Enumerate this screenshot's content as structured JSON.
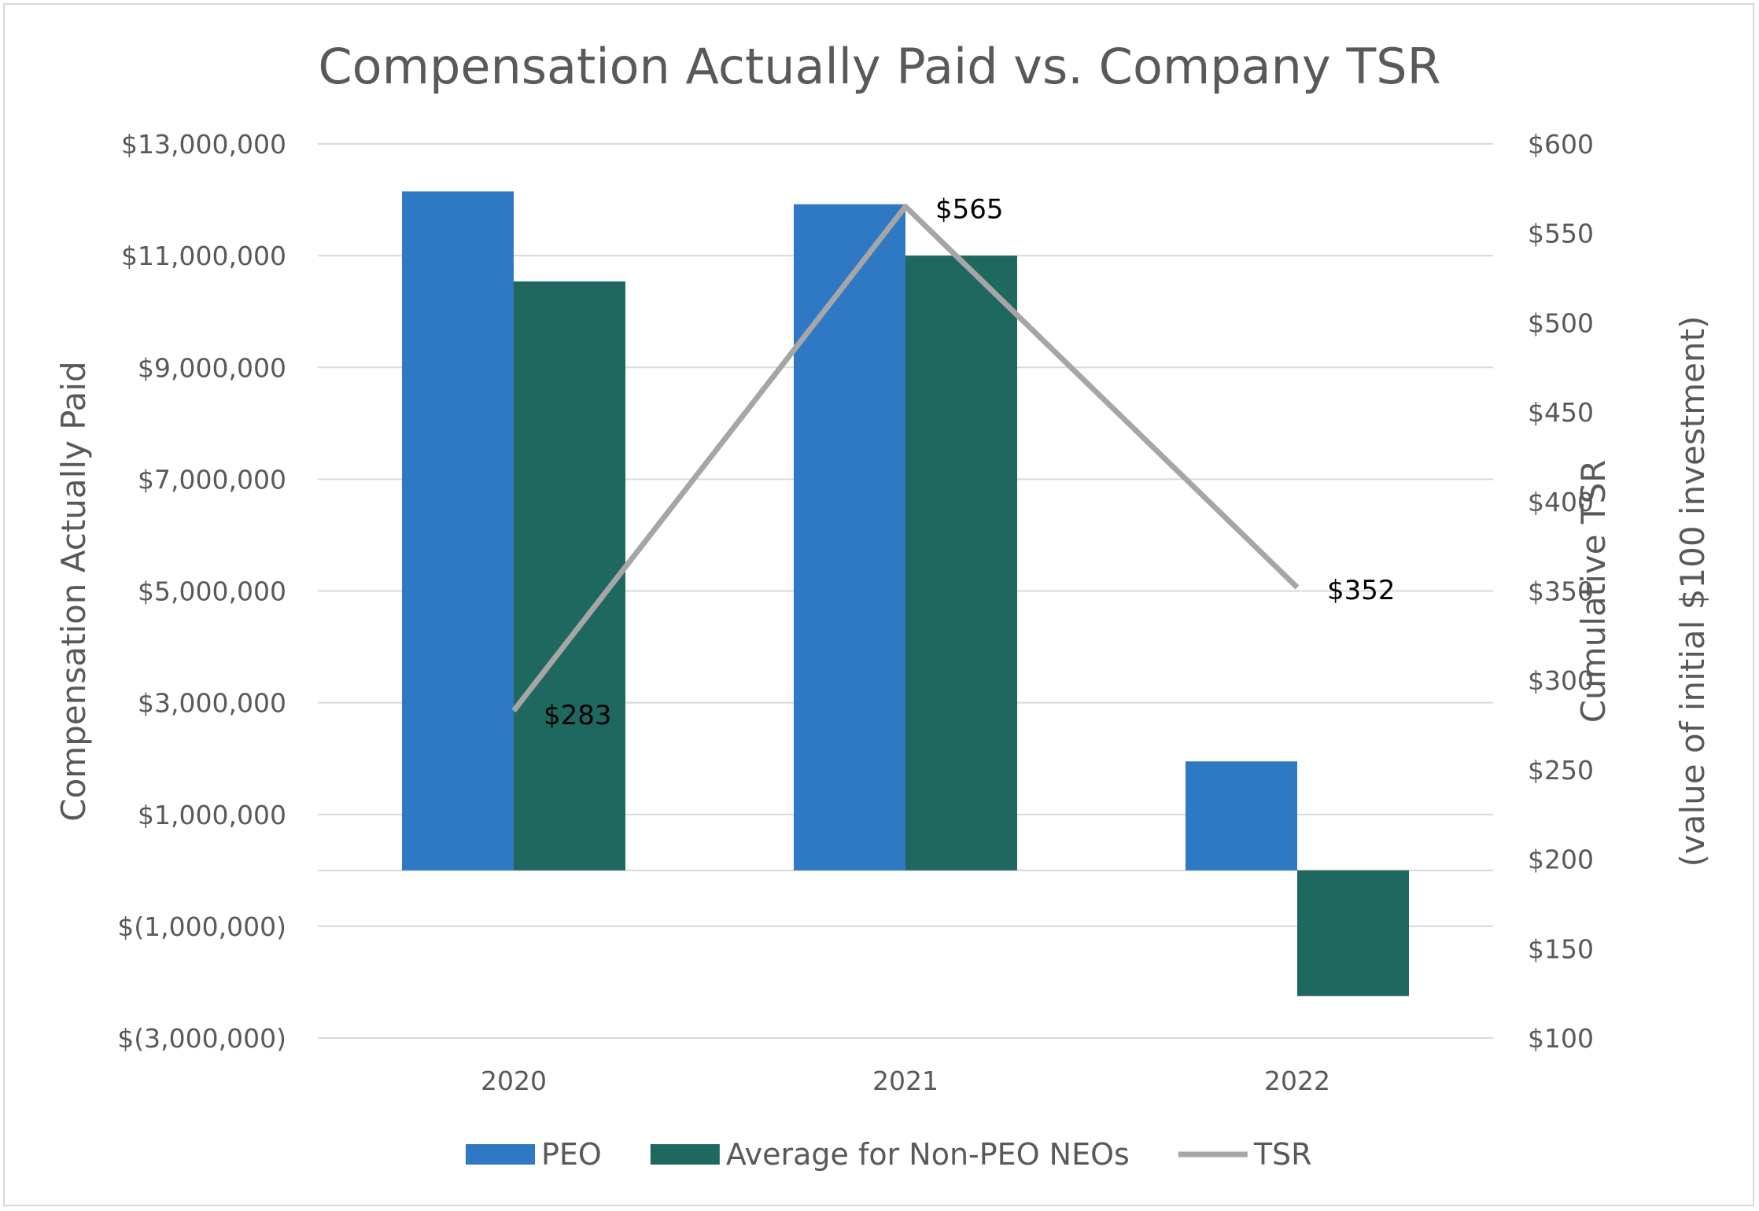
{
  "chart_data": {
    "type": "bar",
    "title": "Compensation Actually Paid vs. Company TSR",
    "categories": [
      "2020",
      "2021",
      "2022"
    ],
    "series": [
      {
        "name": "PEO",
        "type": "bar",
        "axis": "left",
        "color": "#2e78c4",
        "values": [
          12150000,
          11920000,
          1950000
        ]
      },
      {
        "name": "Average for Non-PEO NEOs",
        "type": "bar",
        "axis": "left",
        "color": "#1f6860",
        "values": [
          10540000,
          11000000,
          -2250000
        ]
      },
      {
        "name": "TSR",
        "type": "line",
        "axis": "right",
        "color": "#a6a6a6",
        "values": [
          283,
          565,
          352
        ],
        "labels": [
          "$283",
          "$565",
          "$352"
        ]
      }
    ],
    "ylabel_left": "Compensation Actually Paid",
    "ylabel_right_lines": [
      "Cumulative TSR",
      "(value of initial $100 investment)"
    ],
    "ylim_left": [
      -3000000,
      13000000
    ],
    "ylim_right": [
      100,
      600
    ],
    "left_ticks": [
      {
        "value": 13000000,
        "label": "$13,000,000"
      },
      {
        "value": 11000000,
        "label": "$11,000,000"
      },
      {
        "value": 9000000,
        "label": "$9,000,000"
      },
      {
        "value": 7000000,
        "label": "$7,000,000"
      },
      {
        "value": 5000000,
        "label": "$5,000,000"
      },
      {
        "value": 3000000,
        "label": "$3,000,000"
      },
      {
        "value": 1000000,
        "label": "$1,000,000"
      },
      {
        "value": -1000000,
        "label": "$(1,000,000)"
      },
      {
        "value": -3000000,
        "label": "$(3,000,000)"
      }
    ],
    "right_ticks": [
      {
        "value": 600,
        "label": "$600"
      },
      {
        "value": 550,
        "label": "$550"
      },
      {
        "value": 500,
        "label": "$500"
      },
      {
        "value": 450,
        "label": "$450"
      },
      {
        "value": 400,
        "label": "$400"
      },
      {
        "value": 350,
        "label": "$350"
      },
      {
        "value": 300,
        "label": "$300"
      },
      {
        "value": 250,
        "label": "$250"
      },
      {
        "value": 200,
        "label": "$200"
      },
      {
        "value": 150,
        "label": "$150"
      },
      {
        "value": 100,
        "label": "$100"
      }
    ],
    "grid": true,
    "legend_position": "bottom"
  }
}
